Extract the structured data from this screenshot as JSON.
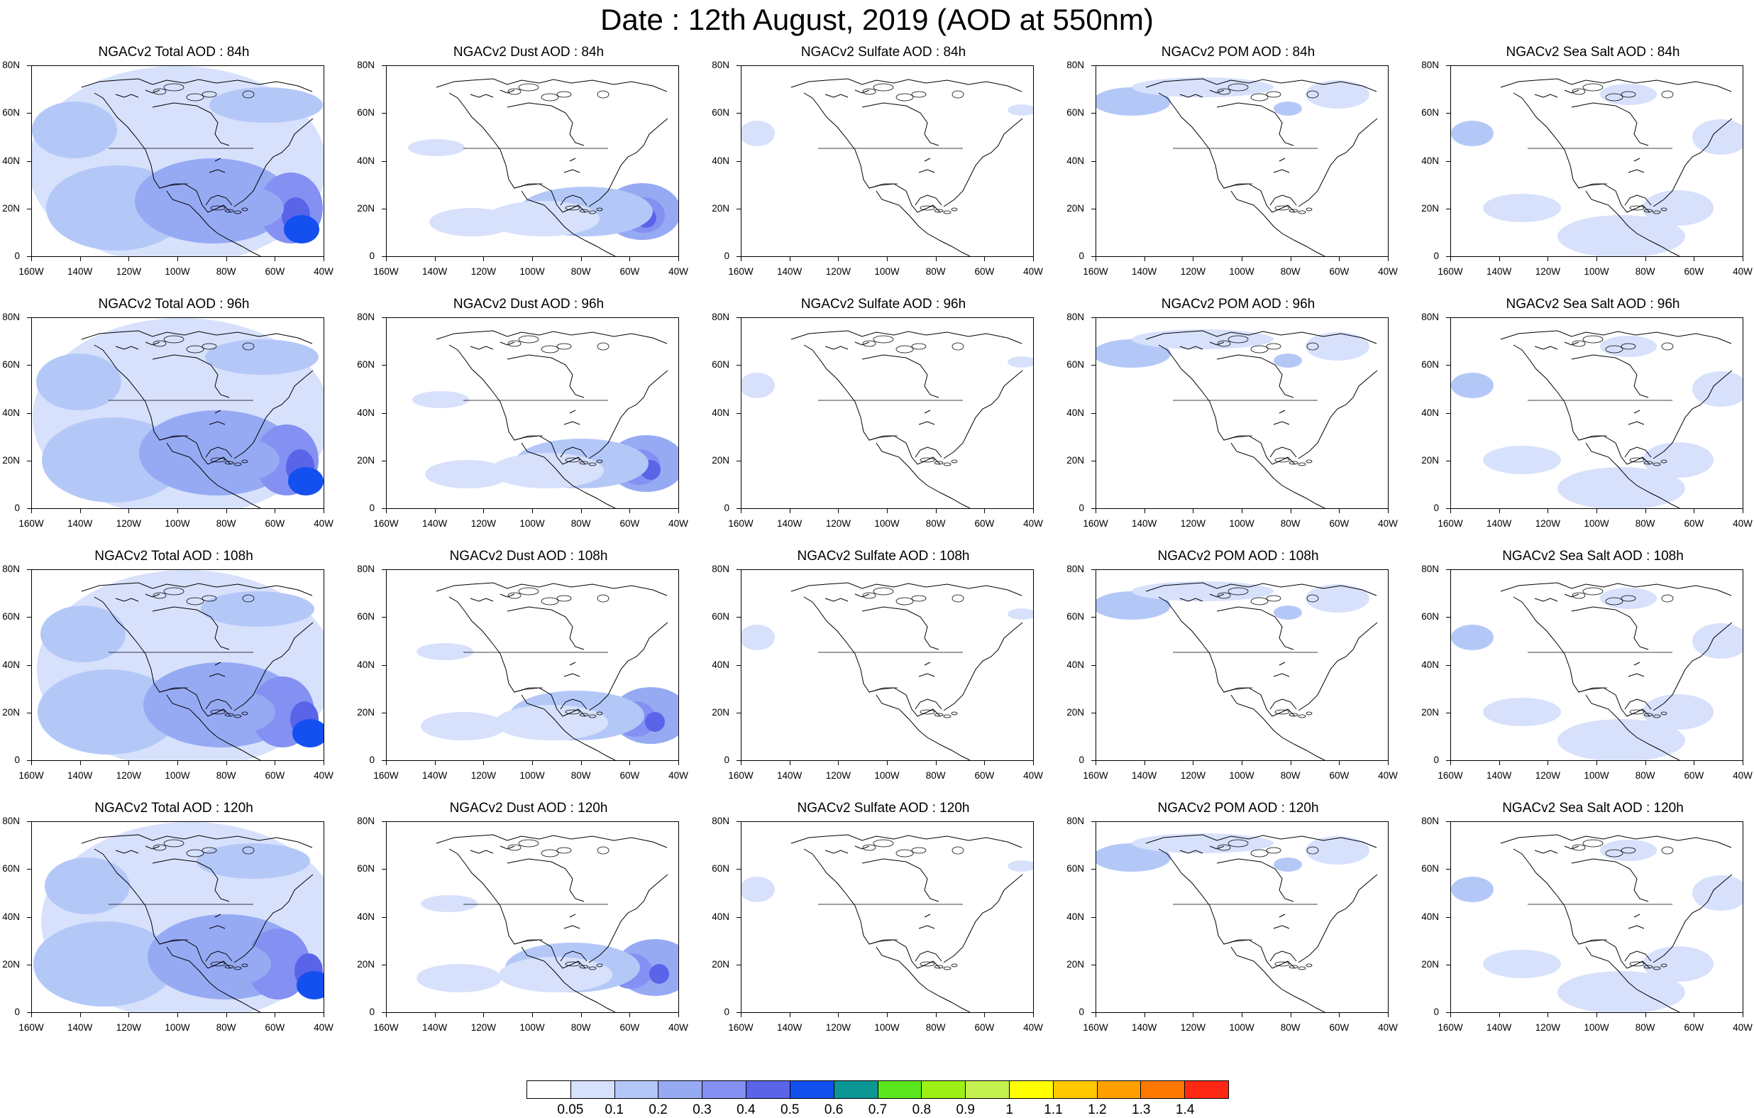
{
  "title": "Date : 12th August, 2019 (AOD at 550nm)",
  "panel_titles": [
    [
      "NGACv2 Total AOD : 84h",
      "NGACv2 Dust AOD : 84h",
      "NGACv2 Sulfate AOD : 84h",
      "NGACv2 POM AOD : 84h",
      "NGACv2 Sea Salt AOD : 84h"
    ],
    [
      "NGACv2 Total AOD : 96h",
      "NGACv2 Dust AOD : 96h",
      "NGACv2 Sulfate AOD : 96h",
      "NGACv2 POM AOD : 96h",
      "NGACv2 Sea Salt AOD : 96h"
    ],
    [
      "NGACv2 Total AOD : 108h",
      "NGACv2 Dust AOD : 108h",
      "NGACv2 Sulfate AOD : 108h",
      "NGACv2 POM AOD : 108h",
      "NGACv2 Sea Salt AOD : 108h"
    ],
    [
      "NGACv2 Total AOD : 120h",
      "NGACv2 Dust AOD : 120h",
      "NGACv2 Sulfate AOD : 120h",
      "NGACv2 POM AOD : 120h",
      "NGACv2 Sea Salt  AOD : 120h"
    ]
  ],
  "y_ticks": [
    "80N",
    "60N",
    "40N",
    "20N",
    "0"
  ],
  "x_ticks": [
    "160W",
    "140W",
    "120W",
    "100W",
    "80W",
    "60W",
    "40W"
  ],
  "colorbar": {
    "colors": [
      "#ffffff",
      "#d7e1fc",
      "#b4c8f8",
      "#96aaf4",
      "#8490f2",
      "#5a64e9",
      "#1450f0",
      "#0c9694",
      "#5ae61c",
      "#9cf014",
      "#c4f050",
      "#ffff00",
      "#ffc800",
      "#ffa000",
      "#ff7800",
      "#ff2814"
    ],
    "labels": [
      "0.05",
      "0.1",
      "0.2",
      "0.3",
      "0.4",
      "0.5",
      "0.6",
      "0.7",
      "0.8",
      "0.9",
      "1",
      "1.1",
      "1.2",
      "1.3",
      "1.4"
    ]
  },
  "icons": {
    "map": "north-america-coastline-map"
  }
}
